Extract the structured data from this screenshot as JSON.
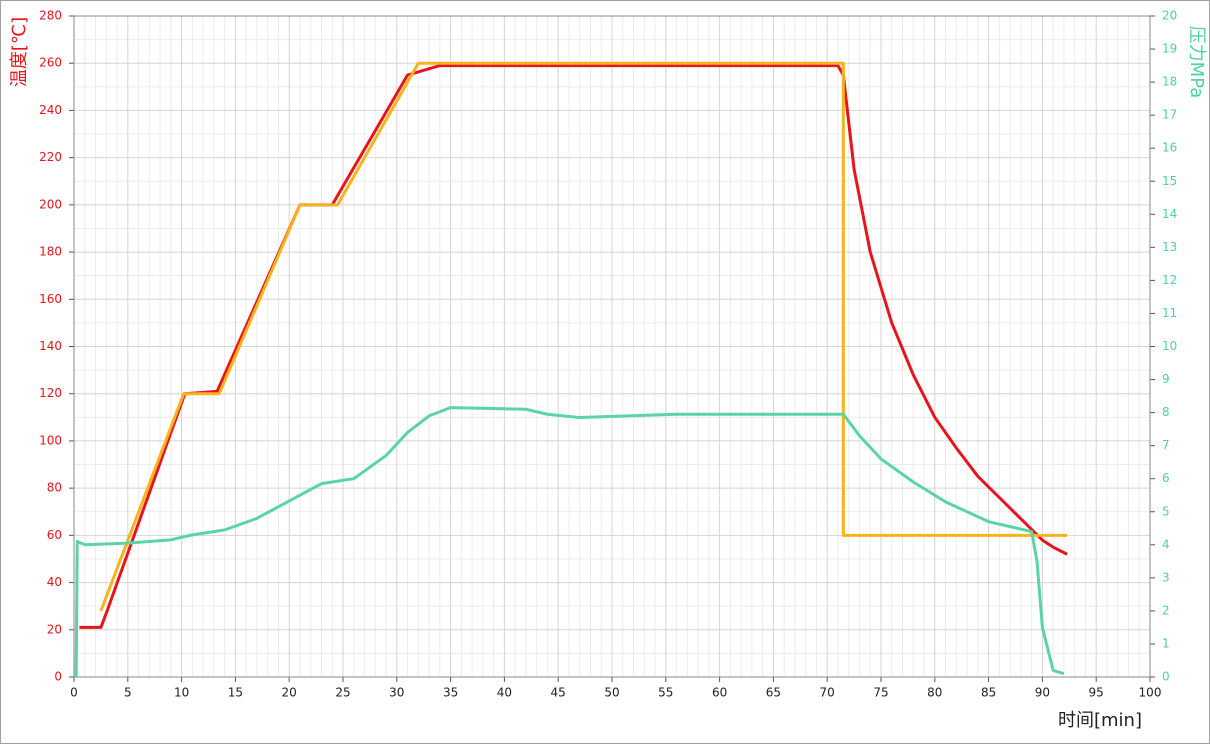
{
  "chart_data": {
    "type": "line",
    "xlabel": "时间[min]",
    "ylabel": "温度[℃]",
    "y2label": "压力MPa",
    "xlim": [
      0,
      100
    ],
    "xticks": [
      0,
      5,
      10,
      15,
      20,
      25,
      30,
      35,
      40,
      45,
      50,
      55,
      60,
      65,
      70,
      75,
      80,
      85,
      90,
      95,
      100
    ],
    "ylim": [
      0,
      280
    ],
    "yticks": [
      0,
      20,
      40,
      60,
      80,
      100,
      120,
      140,
      160,
      180,
      200,
      220,
      240,
      260,
      280
    ],
    "y2lim": [
      0,
      20
    ],
    "y2ticks": [
      0,
      1,
      2,
      3,
      4,
      5,
      6,
      7,
      8,
      9,
      10,
      11,
      12,
      13,
      14,
      15,
      16,
      17,
      18,
      19,
      20
    ],
    "grid": true,
    "ycolor": "#e8141c",
    "y2color": "#4fd0a0",
    "series": [
      {
        "color": "#e8141c",
        "axis": "y",
        "x": [
          0.5,
          2.5,
          3,
          10.3,
          13.3,
          21,
          24,
          31,
          34,
          71,
          71.5,
          72.5,
          74,
          76,
          78,
          80,
          82,
          84,
          86,
          88,
          90,
          91,
          92.3
        ],
        "values": [
          21,
          21,
          27,
          120,
          121,
          200,
          200,
          255,
          259,
          259,
          255,
          215,
          180,
          150,
          128,
          110,
          97,
          85,
          76,
          67,
          58,
          55,
          52
        ]
      },
      {
        "color": "#f5b41e",
        "axis": "y",
        "x": [
          2.5,
          10.2,
          13.5,
          21,
          24.5,
          32,
          71.5,
          71.5,
          92.3
        ],
        "values": [
          28,
          120,
          120,
          200,
          200,
          260,
          260,
          60,
          60
        ]
      },
      {
        "color": "#5ad4a6",
        "axis": "y2",
        "x": [
          0.2,
          0.3,
          1,
          5,
          9,
          11,
          14,
          17,
          21,
          23,
          26,
          29,
          31,
          33,
          35,
          42,
          44,
          47,
          56,
          71.5,
          73,
          75,
          78,
          81,
          85,
          89,
          89.5,
          90,
          91,
          92
        ],
        "values": [
          0,
          4.1,
          4.0,
          4.05,
          4.15,
          4.3,
          4.45,
          4.8,
          5.5,
          5.85,
          6.0,
          6.7,
          7.4,
          7.9,
          8.15,
          8.1,
          7.95,
          7.85,
          7.95,
          7.95,
          7.3,
          6.6,
          5.9,
          5.3,
          4.7,
          4.4,
          3.5,
          1.5,
          0.2,
          0.1
        ]
      }
    ]
  }
}
